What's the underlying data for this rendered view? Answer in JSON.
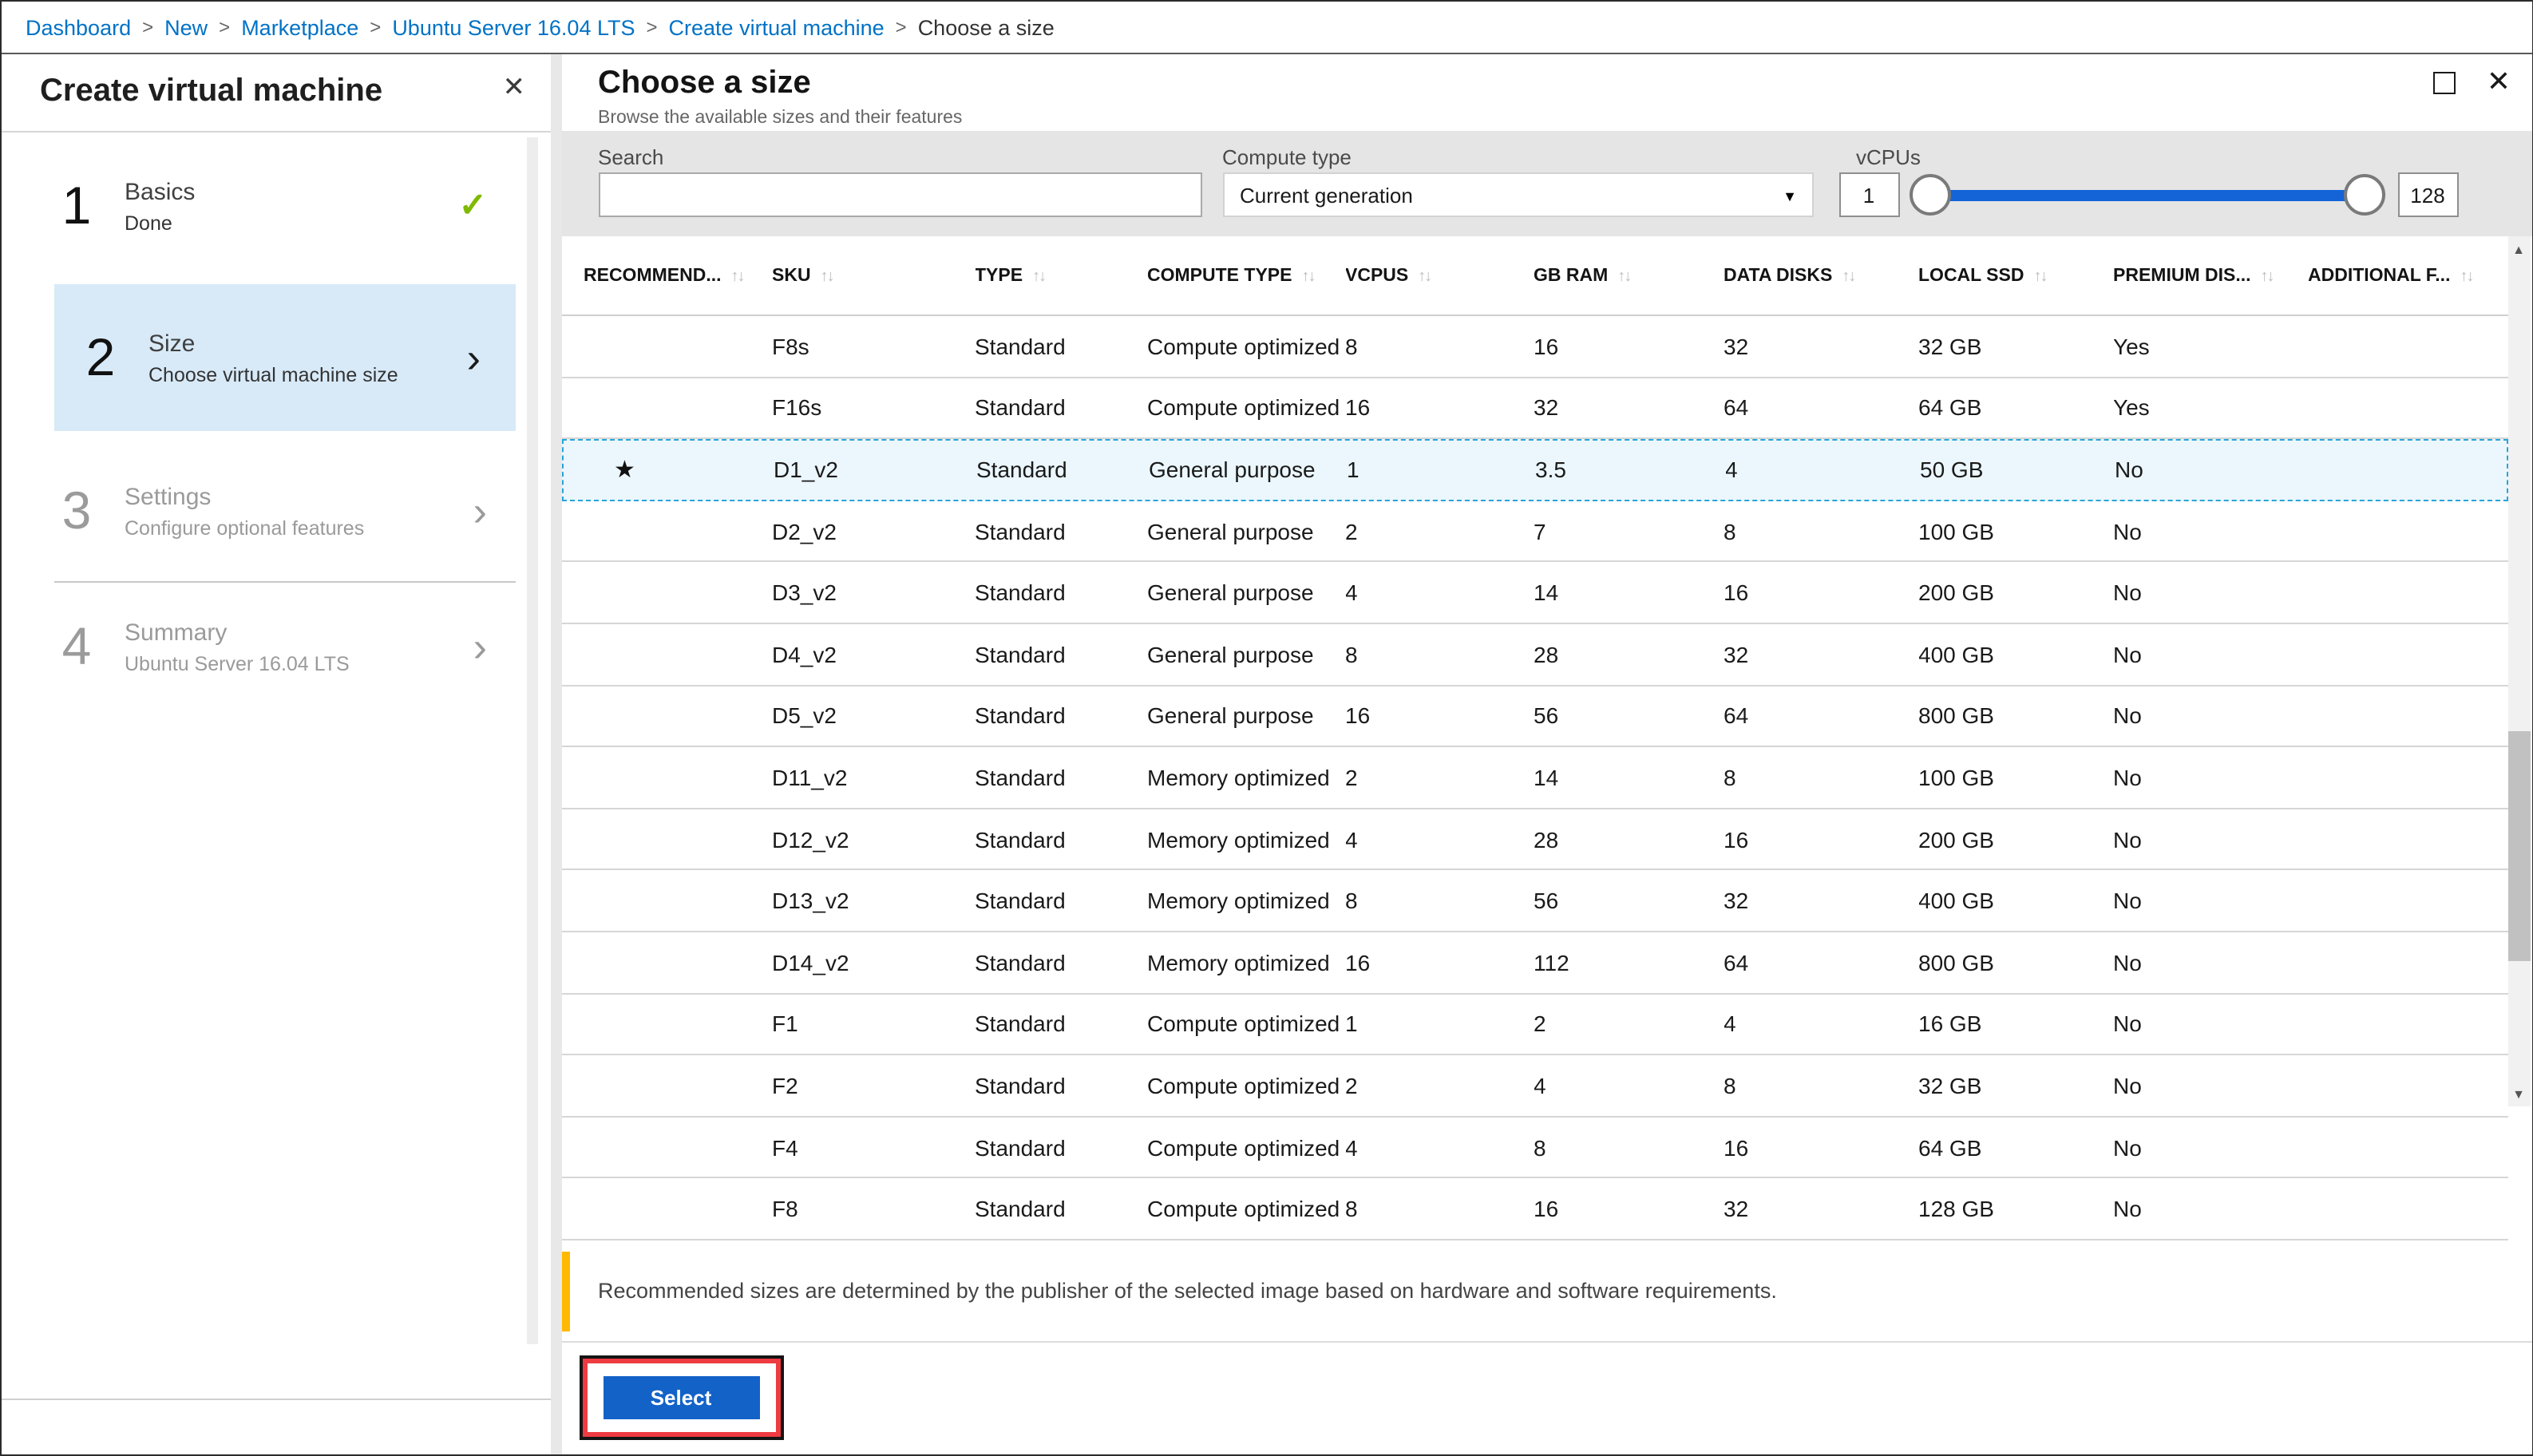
{
  "breadcrumb": {
    "items": [
      "Dashboard",
      "New",
      "Marketplace",
      "Ubuntu Server 16.04 LTS",
      "Create virtual machine",
      "Choose a size"
    ],
    "separator": ">"
  },
  "left_panel": {
    "title": "Create virtual machine",
    "steps": [
      {
        "number": "1",
        "title": "Basics",
        "subtitle": "Done",
        "state": "done"
      },
      {
        "number": "2",
        "title": "Size",
        "subtitle": "Choose virtual machine size",
        "state": "active"
      },
      {
        "number": "3",
        "title": "Settings",
        "subtitle": "Configure optional features",
        "state": "upcoming"
      },
      {
        "number": "4",
        "title": "Summary",
        "subtitle": "Ubuntu Server 16.04 LTS",
        "state": "upcoming"
      }
    ]
  },
  "blade": {
    "title": "Choose a size",
    "subtitle": "Browse the available sizes and their features"
  },
  "filters": {
    "search_label": "Search",
    "search_value": "",
    "compute_type_label": "Compute type",
    "compute_type_value": "Current generation",
    "vcpus_label": "vCPUs",
    "vcpus_min": "1",
    "vcpus_max": "128"
  },
  "table": {
    "columns": [
      {
        "key": "recommended",
        "label": "RECOMMEND..."
      },
      {
        "key": "sku",
        "label": "SKU"
      },
      {
        "key": "type",
        "label": "TYPE"
      },
      {
        "key": "compute_type",
        "label": "COMPUTE TYPE"
      },
      {
        "key": "vcpus",
        "label": "VCPUS"
      },
      {
        "key": "gb_ram",
        "label": "GB RAM"
      },
      {
        "key": "data_disks",
        "label": "DATA DISKS"
      },
      {
        "key": "local_ssd",
        "label": "LOCAL SSD"
      },
      {
        "key": "premium_disk",
        "label": "PREMIUM DIS..."
      },
      {
        "key": "additional",
        "label": "ADDITIONAL F..."
      }
    ],
    "rows": [
      {
        "recommended": false,
        "selected": false,
        "sku": "F8s",
        "type": "Standard",
        "compute_type": "Compute optimized",
        "vcpus": "8",
        "gb_ram": "16",
        "data_disks": "32",
        "local_ssd": "32 GB",
        "premium_disk": "Yes",
        "additional": ""
      },
      {
        "recommended": false,
        "selected": false,
        "sku": "F16s",
        "type": "Standard",
        "compute_type": "Compute optimized",
        "vcpus": "16",
        "gb_ram": "32",
        "data_disks": "64",
        "local_ssd": "64 GB",
        "premium_disk": "Yes",
        "additional": ""
      },
      {
        "recommended": true,
        "selected": true,
        "sku": "D1_v2",
        "type": "Standard",
        "compute_type": "General purpose",
        "vcpus": "1",
        "gb_ram": "3.5",
        "data_disks": "4",
        "local_ssd": "50 GB",
        "premium_disk": "No",
        "additional": ""
      },
      {
        "recommended": false,
        "selected": false,
        "sku": "D2_v2",
        "type": "Standard",
        "compute_type": "General purpose",
        "vcpus": "2",
        "gb_ram": "7",
        "data_disks": "8",
        "local_ssd": "100 GB",
        "premium_disk": "No",
        "additional": ""
      },
      {
        "recommended": false,
        "selected": false,
        "sku": "D3_v2",
        "type": "Standard",
        "compute_type": "General purpose",
        "vcpus": "4",
        "gb_ram": "14",
        "data_disks": "16",
        "local_ssd": "200 GB",
        "premium_disk": "No",
        "additional": ""
      },
      {
        "recommended": false,
        "selected": false,
        "sku": "D4_v2",
        "type": "Standard",
        "compute_type": "General purpose",
        "vcpus": "8",
        "gb_ram": "28",
        "data_disks": "32",
        "local_ssd": "400 GB",
        "premium_disk": "No",
        "additional": ""
      },
      {
        "recommended": false,
        "selected": false,
        "sku": "D5_v2",
        "type": "Standard",
        "compute_type": "General purpose",
        "vcpus": "16",
        "gb_ram": "56",
        "data_disks": "64",
        "local_ssd": "800 GB",
        "premium_disk": "No",
        "additional": ""
      },
      {
        "recommended": false,
        "selected": false,
        "sku": "D11_v2",
        "type": "Standard",
        "compute_type": "Memory optimized",
        "vcpus": "2",
        "gb_ram": "14",
        "data_disks": "8",
        "local_ssd": "100 GB",
        "premium_disk": "No",
        "additional": ""
      },
      {
        "recommended": false,
        "selected": false,
        "sku": "D12_v2",
        "type": "Standard",
        "compute_type": "Memory optimized",
        "vcpus": "4",
        "gb_ram": "28",
        "data_disks": "16",
        "local_ssd": "200 GB",
        "premium_disk": "No",
        "additional": ""
      },
      {
        "recommended": false,
        "selected": false,
        "sku": "D13_v2",
        "type": "Standard",
        "compute_type": "Memory optimized",
        "vcpus": "8",
        "gb_ram": "56",
        "data_disks": "32",
        "local_ssd": "400 GB",
        "premium_disk": "No",
        "additional": ""
      },
      {
        "recommended": false,
        "selected": false,
        "sku": "D14_v2",
        "type": "Standard",
        "compute_type": "Memory optimized",
        "vcpus": "16",
        "gb_ram": "112",
        "data_disks": "64",
        "local_ssd": "800 GB",
        "premium_disk": "No",
        "additional": ""
      },
      {
        "recommended": false,
        "selected": false,
        "sku": "F1",
        "type": "Standard",
        "compute_type": "Compute optimized",
        "vcpus": "1",
        "gb_ram": "2",
        "data_disks": "4",
        "local_ssd": "16 GB",
        "premium_disk": "No",
        "additional": ""
      },
      {
        "recommended": false,
        "selected": false,
        "sku": "F2",
        "type": "Standard",
        "compute_type": "Compute optimized",
        "vcpus": "2",
        "gb_ram": "4",
        "data_disks": "8",
        "local_ssd": "32 GB",
        "premium_disk": "No",
        "additional": ""
      },
      {
        "recommended": false,
        "selected": false,
        "sku": "F4",
        "type": "Standard",
        "compute_type": "Compute optimized",
        "vcpus": "4",
        "gb_ram": "8",
        "data_disks": "16",
        "local_ssd": "64 GB",
        "premium_disk": "No",
        "additional": ""
      },
      {
        "recommended": false,
        "selected": false,
        "sku": "F8",
        "type": "Standard",
        "compute_type": "Compute optimized",
        "vcpus": "8",
        "gb_ram": "16",
        "data_disks": "32",
        "local_ssd": "128 GB",
        "premium_disk": "No",
        "additional": ""
      }
    ],
    "sort_icon": "↑↓"
  },
  "note": "Recommended sizes are determined by the publisher of the selected image based on hardware and software requirements.",
  "select_button_label": "Select",
  "icons": {
    "close": "✕",
    "check": "✓",
    "chevron": "›",
    "star": "★",
    "caret_down": "▼",
    "scroll_up": "▲",
    "scroll_down": "▼"
  },
  "colors": {
    "link_blue": "#0072c6",
    "step_active_bg": "#d8eaf8",
    "check_green": "#7fba00",
    "selected_row_bg": "#ebf7fd",
    "selected_row_border": "#29a4d9",
    "slider_blue": "#1464d8",
    "button_blue": "#1262c8",
    "note_amber": "#ffb900",
    "annotation_red": "#ee3a41",
    "filterbar_gray": "#e5e5e5"
  }
}
